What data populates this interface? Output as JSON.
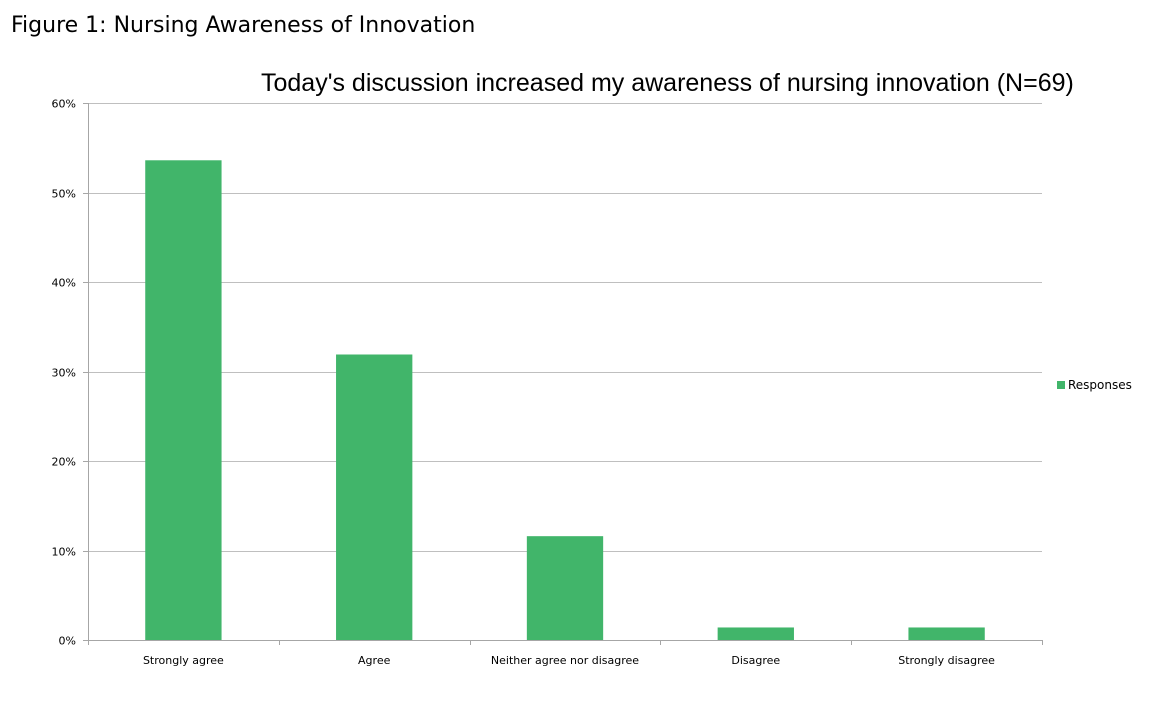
{
  "figure_caption": "Figure 1: Nursing Awareness of Innovation",
  "colors": {
    "bar": "#41b56a",
    "grid": "#bfbfbf",
    "axis": "#a6a6a6"
  },
  "chart_data": {
    "type": "bar",
    "title": "Today's discussion increased my awareness of nursing innovation (N=69)",
    "xlabel": "",
    "ylabel": "",
    "categories": [
      "Strongly agree",
      "Agree",
      "Neither agree nor disagree",
      "Disagree",
      "Strongly disagree"
    ],
    "series": [
      {
        "name": "Responses",
        "values": [
          53.6,
          31.9,
          11.6,
          1.4,
          1.4
        ]
      }
    ],
    "ylim": [
      0,
      60
    ],
    "yticks": [
      0,
      10,
      20,
      30,
      40,
      50,
      60
    ],
    "ytick_labels": [
      "0%",
      "10%",
      "20%",
      "30%",
      "40%",
      "50%",
      "60%"
    ],
    "grid": true,
    "legend_position": "right"
  }
}
